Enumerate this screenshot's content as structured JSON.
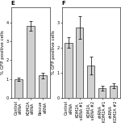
{
  "chart_data": [
    {
      "type": "bar",
      "title": "E",
      "categories": [
        "Control\nsiRNA",
        "KDM2A\nsiRNA",
        "Rescue\nsiRNA"
      ],
      "values": [
        1.0,
        3.8,
        1.2
      ],
      "errors": [
        0.1,
        0.25,
        0.15
      ],
      "ylabel": "% GFP positive cells",
      "color": "#d0d0d0",
      "ylim": [
        0,
        4.8
      ],
      "yticks": [
        0,
        1,
        2,
        3,
        4
      ]
    },
    {
      "type": "bar",
      "title": "F",
      "categories": [
        "Control\nsiRNA",
        "KDM2A\nsiRNA #1",
        "KDM2A\nsiRNA #2",
        "shRNA\nKDM2A #1",
        "shRNA\nKDM2A #2"
      ],
      "values": [
        2.2,
        2.8,
        1.3,
        0.4,
        0.5
      ],
      "errors": [
        0.2,
        0.45,
        0.35,
        0.1,
        0.1
      ],
      "ylabel": "% GFP positive cells",
      "color": "#d0d0d0",
      "ylim": [
        0,
        3.6
      ],
      "yticks": [
        0,
        1,
        2,
        3
      ]
    }
  ]
}
